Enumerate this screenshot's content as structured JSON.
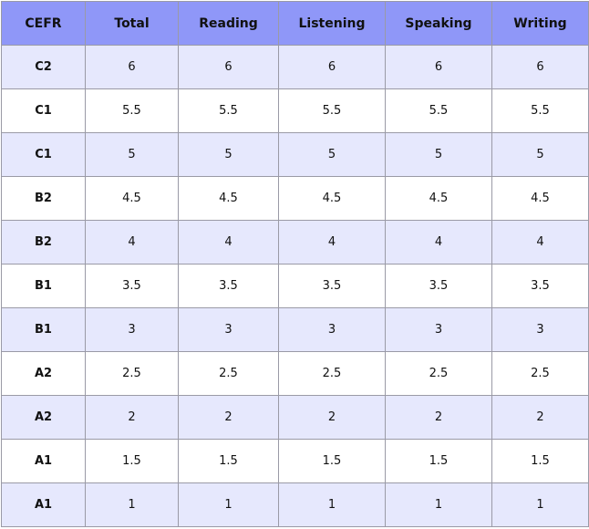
{
  "table": {
    "header": [
      "CEFR",
      "Total",
      "Reading",
      "Listening",
      "Speaking",
      "Writing"
    ],
    "rows": [
      [
        "C2",
        "6",
        "6",
        "6",
        "6",
        "6"
      ],
      [
        "C1",
        "5.5",
        "5.5",
        "5.5",
        "5.5",
        "5.5"
      ],
      [
        "C1",
        "5",
        "5",
        "5",
        "5",
        "5"
      ],
      [
        "B2",
        "4.5",
        "4.5",
        "4.5",
        "4.5",
        "4.5"
      ],
      [
        "B2",
        "4",
        "4",
        "4",
        "4",
        "4"
      ],
      [
        "B1",
        "3.5",
        "3.5",
        "3.5",
        "3.5",
        "3.5"
      ],
      [
        "B1",
        "3",
        "3",
        "3",
        "3",
        "3"
      ],
      [
        "A2",
        "2.5",
        "2.5",
        "2.5",
        "2.5",
        "2.5"
      ],
      [
        "A2",
        "2",
        "2",
        "2",
        "2",
        "2"
      ],
      [
        "A1",
        "1.5",
        "1.5",
        "1.5",
        "1.5",
        "1.5"
      ],
      [
        "A1",
        "1",
        "1",
        "1",
        "1",
        "1"
      ]
    ]
  }
}
